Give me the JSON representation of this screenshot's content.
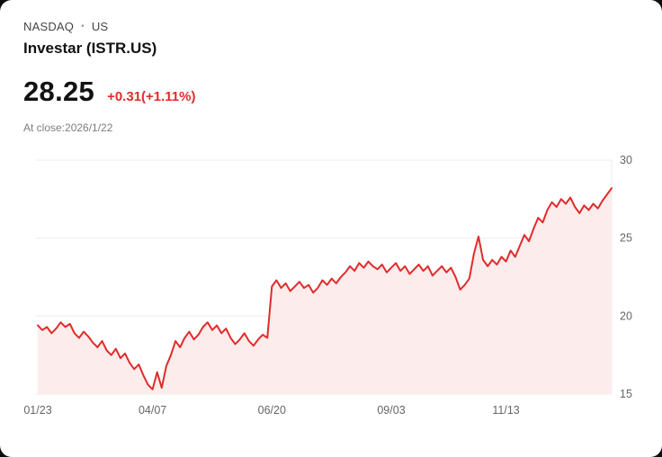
{
  "header": {
    "exchange": "NASDAQ",
    "separator": "•",
    "region": "US",
    "title": "Investar (ISTR.US)"
  },
  "quote": {
    "price": "28.25",
    "change": "+0.31(+1.11%)",
    "at_close": "At close:2026/1/22"
  },
  "colors": {
    "accent_red": "#e12b2b",
    "text_dark": "#121212",
    "text_gray": "#7d7d7d"
  },
  "chart_data": {
    "type": "line",
    "ylim": [
      15,
      30
    ],
    "y_ticks": [
      15,
      20,
      25,
      30
    ],
    "x_tick_labels": [
      "01/23",
      "04/07",
      "06/20",
      "09/03",
      "11/13"
    ],
    "x_tick_indices": [
      0,
      25,
      51,
      77,
      102
    ],
    "grid": "horizontal",
    "legend": "none",
    "line_color": "#e12b2b",
    "fill_color": "#fdecec",
    "grid_color": "#ececec",
    "axis_text_color": "#666666",
    "values": [
      19.4,
      19.1,
      19.3,
      18.9,
      19.2,
      19.6,
      19.3,
      19.5,
      18.9,
      18.6,
      19.0,
      18.7,
      18.3,
      18.0,
      18.4,
      17.8,
      17.5,
      17.9,
      17.3,
      17.6,
      17.0,
      16.6,
      16.9,
      16.2,
      15.6,
      15.3,
      16.4,
      15.4,
      16.8,
      17.5,
      18.4,
      18.0,
      18.6,
      19.0,
      18.5,
      18.8,
      19.3,
      19.6,
      19.1,
      19.4,
      18.9,
      19.2,
      18.6,
      18.2,
      18.5,
      18.9,
      18.4,
      18.1,
      18.5,
      18.8,
      18.6,
      21.9,
      22.3,
      21.8,
      22.1,
      21.6,
      21.9,
      22.2,
      21.8,
      22.0,
      21.5,
      21.8,
      22.3,
      22.0,
      22.4,
      22.1,
      22.5,
      22.8,
      23.2,
      22.9,
      23.4,
      23.1,
      23.5,
      23.2,
      23.0,
      23.3,
      22.8,
      23.1,
      23.4,
      22.9,
      23.2,
      22.7,
      23.0,
      23.3,
      22.9,
      23.2,
      22.6,
      22.9,
      23.2,
      22.8,
      23.1,
      22.5,
      21.7,
      22.0,
      22.4,
      24.0,
      25.1,
      23.6,
      23.2,
      23.6,
      23.3,
      23.8,
      23.5,
      24.2,
      23.8,
      24.5,
      25.2,
      24.8,
      25.6,
      26.3,
      26.0,
      26.8,
      27.3,
      27.0,
      27.5,
      27.2,
      27.6,
      27.0,
      26.6,
      27.1,
      26.8,
      27.2,
      26.9,
      27.4,
      27.8,
      28.2
    ]
  }
}
